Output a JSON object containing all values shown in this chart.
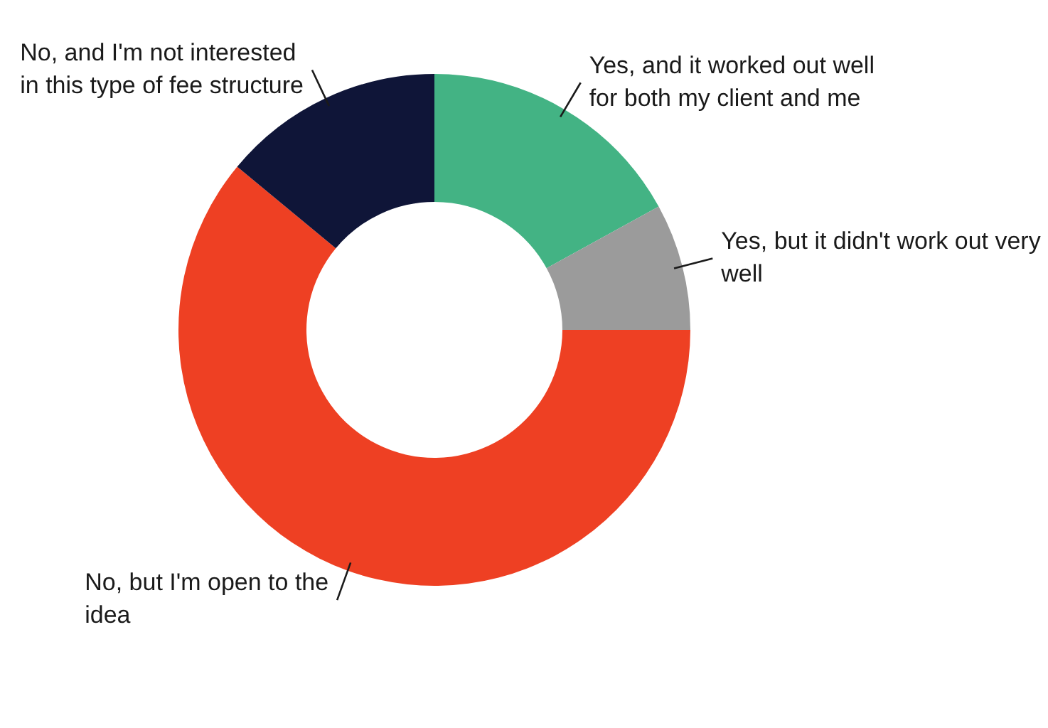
{
  "chart_data": {
    "type": "donut",
    "categories": [
      "Yes, and it worked out well for both my client and me",
      "Yes, but it didn't work out very well",
      "No, but I'm open to the idea",
      "No, and I'm not interested in this type of fee structure"
    ],
    "values": [
      17,
      8,
      61,
      14
    ],
    "colors": [
      "#43b384",
      "#9b9b9b",
      "#ee4023",
      "#0f1538"
    ],
    "legend": false
  }
}
